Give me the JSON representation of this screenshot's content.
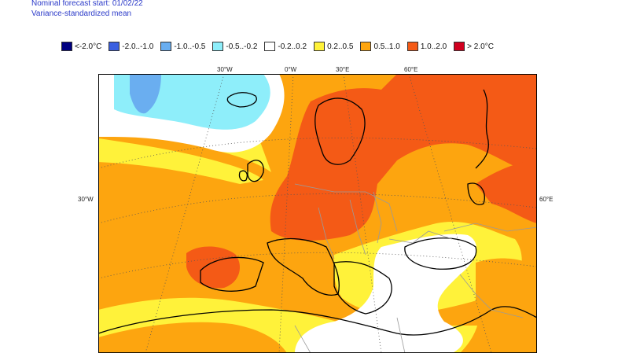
{
  "header": {
    "line1": "Nominal forecast start: 01/02/22",
    "line2": "Variance-standardized mean"
  },
  "legend": [
    {
      "label": "<-2.0°C",
      "color": "#000080"
    },
    {
      "label": "-2.0..-1.0",
      "color": "#3a5fe0"
    },
    {
      "label": "-1.0..-0.5",
      "color": "#6aaef0"
    },
    {
      "label": "-0.5..-0.2",
      "color": "#8eeefa"
    },
    {
      "label": "-0.2..0.2",
      "color": "#ffffff"
    },
    {
      "label": "0.2..0.5",
      "color": "#fff23a"
    },
    {
      "label": "0.5..1.0",
      "color": "#fda50f"
    },
    {
      "label": "1.0..2.0",
      "color": "#f45a16"
    },
    {
      "label": "> 2.0°C",
      "color": "#d0001f"
    }
  ],
  "map_labels": {
    "lon_30w": "30°W",
    "lon_0w": "0°W",
    "lon_30e": "30°E",
    "lon_60e": "60°E",
    "left_30w": "30°W",
    "right_60e": "60°E"
  }
}
